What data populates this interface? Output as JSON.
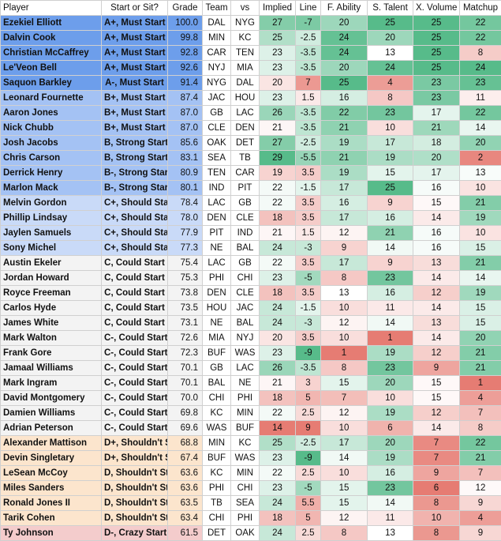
{
  "headers": [
    "Player",
    "Start or Sit?",
    "Grade",
    "Team",
    "vs",
    "Implied",
    "Line",
    "F. Ability",
    "S. Talent",
    "X. Volume",
    "Matchup"
  ],
  "rows": [
    [
      "Ezekiel Elliott",
      "A+, Must Start",
      "100.0",
      "DAL",
      "NYG",
      "27",
      "-7",
      "20",
      "25",
      "25",
      "22"
    ],
    [
      "Dalvin Cook",
      "A+, Must Start",
      "99.8",
      "MIN",
      "KC",
      "25",
      "-2.5",
      "24",
      "20",
      "25",
      "22"
    ],
    [
      "Christian McCaffrey",
      "A+, Must Start",
      "92.8",
      "CAR",
      "TEN",
      "23",
      "-3.5",
      "24",
      "13",
      "25",
      "8"
    ],
    [
      "Le'Veon Bell",
      "A+, Must Start",
      "92.6",
      "NYJ",
      "MIA",
      "23",
      "-3.5",
      "20",
      "24",
      "25",
      "24"
    ],
    [
      "Saquon Barkley",
      "A-, Must Start",
      "91.4",
      "NYG",
      "DAL",
      "20",
      "7",
      "25",
      "4",
      "23",
      "23"
    ],
    [
      "Leonard Fournette",
      "B+, Must Start",
      "87.4",
      "JAC",
      "HOU",
      "23",
      "1.5",
      "16",
      "8",
      "23",
      "11"
    ],
    [
      "Aaron Jones",
      "B+, Must Start",
      "87.0",
      "GB",
      "LAC",
      "26",
      "-3.5",
      "22",
      "23",
      "17",
      "22"
    ],
    [
      "Nick Chubb",
      "B+, Must Start",
      "87.0",
      "CLE",
      "DEN",
      "21",
      "-3.5",
      "21",
      "10",
      "21",
      "14"
    ],
    [
      "Josh Jacobs",
      "B, Strong Start",
      "85.6",
      "OAK",
      "DET",
      "27",
      "-2.5",
      "19",
      "17",
      "18",
      "20"
    ],
    [
      "Chris Carson",
      "B, Strong Start",
      "83.1",
      "SEA",
      "TB",
      "29",
      "-5.5",
      "21",
      "19",
      "20",
      "2"
    ],
    [
      "Derrick Henry",
      "B-, Strong Start",
      "80.9",
      "TEN",
      "CAR",
      "19",
      "3.5",
      "19",
      "15",
      "17",
      "13"
    ],
    [
      "Marlon Mack",
      "B-, Strong Start",
      "80.1",
      "IND",
      "PIT",
      "22",
      "-1.5",
      "17",
      "25",
      "16",
      "10"
    ],
    [
      "Melvin Gordon",
      "C+, Should Start",
      "78.4",
      "LAC",
      "GB",
      "22",
      "3.5",
      "16",
      "9",
      "15",
      "21"
    ],
    [
      "Phillip Lindsay",
      "C+, Should Start",
      "78.0",
      "DEN",
      "CLE",
      "18",
      "3.5",
      "17",
      "16",
      "14",
      "19"
    ],
    [
      "Jaylen Samuels",
      "C+, Should Start",
      "77.9",
      "PIT",
      "IND",
      "21",
      "1.5",
      "12",
      "21",
      "16",
      "10"
    ],
    [
      "Sony Michel",
      "C+, Should Start",
      "77.3",
      "NE",
      "BAL",
      "24",
      "-3",
      "9",
      "14",
      "16",
      "15"
    ],
    [
      "Austin Ekeler",
      "C, Could Start",
      "75.4",
      "LAC",
      "GB",
      "22",
      "3.5",
      "17",
      "9",
      "13",
      "21"
    ],
    [
      "Jordan Howard",
      "C, Could Start",
      "75.3",
      "PHI",
      "CHI",
      "23",
      "-5",
      "8",
      "23",
      "14",
      "14"
    ],
    [
      "Royce Freeman",
      "C, Could Start",
      "73.8",
      "DEN",
      "CLE",
      "18",
      "3.5",
      "13",
      "16",
      "12",
      "19"
    ],
    [
      "Carlos Hyde",
      "C, Could Start",
      "73.5",
      "HOU",
      "JAC",
      "24",
      "-1.5",
      "10",
      "11",
      "14",
      "15"
    ],
    [
      "James White",
      "C, Could Start",
      "73.1",
      "NE",
      "BAL",
      "24",
      "-3",
      "12",
      "14",
      "13",
      "15"
    ],
    [
      "Mark Walton",
      "C-, Could Start",
      "72.6",
      "MIA",
      "NYJ",
      "20",
      "3.5",
      "10",
      "1",
      "14",
      "20"
    ],
    [
      "Frank Gore",
      "C-, Could Start",
      "72.3",
      "BUF",
      "WAS",
      "23",
      "-9",
      "1",
      "19",
      "12",
      "21"
    ],
    [
      "Jamaal Williams",
      "C-, Could Start",
      "70.1",
      "GB",
      "LAC",
      "26",
      "-3.5",
      "8",
      "23",
      "9",
      "21"
    ],
    [
      "Mark Ingram",
      "C-, Could Start",
      "70.1",
      "BAL",
      "NE",
      "21",
      "3",
      "15",
      "20",
      "15",
      "1"
    ],
    [
      "David Montgomery",
      "C-, Could Start",
      "70.0",
      "CHI",
      "PHI",
      "18",
      "5",
      "7",
      "10",
      "15",
      "4"
    ],
    [
      "Damien Williams",
      "C-, Could Start",
      "69.8",
      "KC",
      "MIN",
      "22",
      "2.5",
      "12",
      "19",
      "12",
      "7"
    ],
    [
      "Adrian Peterson",
      "C-, Could Start",
      "69.6",
      "WAS",
      "BUF",
      "14",
      "9",
      "10",
      "6",
      "14",
      "8"
    ],
    [
      "Alexander Mattison",
      "D+, Shouldn't Start",
      "68.8",
      "MIN",
      "KC",
      "25",
      "-2.5",
      "17",
      "20",
      "7",
      "22"
    ],
    [
      "Devin Singletary",
      "D+, Shouldn't Start",
      "67.4",
      "BUF",
      "WAS",
      "23",
      "-9",
      "14",
      "19",
      "7",
      "21"
    ],
    [
      "LeSean McCoy",
      "D, Shouldn't Start",
      "63.6",
      "KC",
      "MIN",
      "22",
      "2.5",
      "10",
      "16",
      "9",
      "7"
    ],
    [
      "Miles Sanders",
      "D, Shouldn't Start",
      "63.6",
      "PHI",
      "CHI",
      "23",
      "-5",
      "15",
      "23",
      "6",
      "12"
    ],
    [
      "Ronald Jones II",
      "D, Shouldn't Start",
      "63.5",
      "TB",
      "SEA",
      "24",
      "5.5",
      "15",
      "14",
      "8",
      "9"
    ],
    [
      "Tarik Cohen",
      "D, Shouldn't Start",
      "63.4",
      "CHI",
      "PHI",
      "18",
      "5",
      "12",
      "11",
      "10",
      "4"
    ],
    [
      "Ty Johnson",
      "D-, Crazy Start",
      "61.5",
      "DET",
      "OAK",
      "24",
      "2.5",
      "8",
      "13",
      "8",
      "9"
    ]
  ],
  "colors": {
    "tier_a": "#6d9eeb",
    "tier_b": "#a4c2f4",
    "tier_c_plus": "#c9daf8",
    "tier_c": "#f3f3f3",
    "tier_d": "#fce5cd",
    "tier_d_minus": "#f4cccc",
    "good": "#57bb8a",
    "neutral": "#ffffff",
    "bad": "#e67c73"
  }
}
